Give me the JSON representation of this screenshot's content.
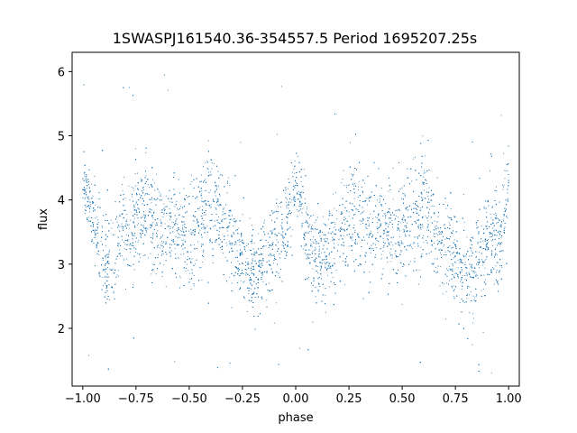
{
  "chart_data": {
    "type": "scatter",
    "title": "1SWASPJ161540.36-354557.5 Period 1695207.25s",
    "xlabel": "phase",
    "ylabel": "flux",
    "xlim": [
      -1.05,
      1.05
    ],
    "ylim": [
      1.1,
      6.3
    ],
    "xticks": [
      -1.0,
      -0.75,
      -0.5,
      -0.25,
      0.0,
      0.25,
      0.5,
      0.75,
      1.0
    ],
    "xtick_labels": [
      "−1.00",
      "−0.75",
      "−0.50",
      "−0.25",
      "0.00",
      "0.25",
      "0.50",
      "0.75",
      "1.00"
    ],
    "yticks": [
      2,
      3,
      4,
      5,
      6
    ],
    "ytick_labels": [
      "2",
      "3",
      "4",
      "5",
      "6"
    ],
    "grid": false,
    "legend": "none",
    "marker_color": "#1f77b4",
    "series": [
      {
        "points_description_note": "",
        "x": [
          -1.0,
          -0.97,
          -0.94,
          -0.9,
          -0.86,
          -0.82,
          -0.78,
          -0.74,
          -0.7,
          -0.66,
          -0.62,
          -0.58,
          -0.54,
          -0.5,
          -0.46,
          -0.42,
          -0.38,
          -0.34,
          -0.3,
          -0.26,
          -0.22,
          -0.18,
          -0.14,
          -0.1,
          -0.06,
          -0.02,
          0.0,
          0.04,
          0.08,
          0.12,
          0.16,
          0.2,
          0.24,
          0.28,
          0.32,
          0.36,
          0.4,
          0.44,
          0.48,
          0.52,
          0.56,
          0.6,
          0.64,
          0.68,
          0.72,
          0.76,
          0.8,
          0.84,
          0.88,
          0.92,
          0.96,
          1.0
        ],
        "y": [
          4.3,
          4.0,
          3.5,
          3.1,
          3.0,
          3.5,
          3.6,
          3.7,
          3.8,
          3.6,
          3.5,
          3.6,
          3.5,
          3.4,
          3.6,
          3.8,
          3.9,
          3.6,
          3.3,
          3.2,
          3.0,
          2.9,
          3.1,
          3.3,
          3.5,
          3.8,
          4.3,
          3.6,
          3.2,
          3.1,
          3.2,
          3.5,
          3.7,
          3.8,
          3.7,
          3.5,
          3.6,
          3.5,
          3.4,
          3.6,
          3.8,
          3.9,
          3.7,
          3.4,
          3.2,
          3.0,
          2.9,
          3.0,
          3.3,
          3.5,
          3.3,
          4.3
        ],
        "spread": [
          0.35,
          0.3,
          0.45,
          0.5,
          0.5,
          0.5,
          0.55,
          0.6,
          0.6,
          0.55,
          0.5,
          0.5,
          0.5,
          0.55,
          0.6,
          0.6,
          0.55,
          0.5,
          0.5,
          0.5,
          0.5,
          0.45,
          0.45,
          0.5,
          0.5,
          0.45,
          0.35,
          0.45,
          0.5,
          0.5,
          0.5,
          0.5,
          0.55,
          0.6,
          0.6,
          0.5,
          0.5,
          0.5,
          0.5,
          0.55,
          0.6,
          0.6,
          0.55,
          0.5,
          0.5,
          0.5,
          0.5,
          0.5,
          0.5,
          0.55,
          0.5,
          0.35
        ]
      }
    ]
  }
}
